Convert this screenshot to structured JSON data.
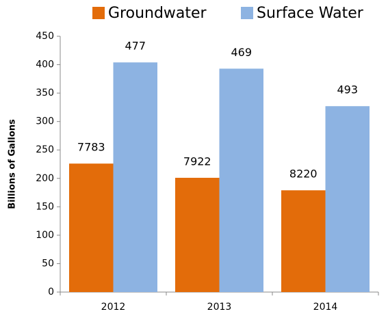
{
  "chart_data": {
    "type": "bar",
    "y_label": "Billions of Gallons",
    "categories": [
      "2012",
      "2013",
      "2014"
    ],
    "series": [
      {
        "name": "Groundwater",
        "color": "#e36c0a",
        "values": [
          226,
          201,
          179
        ],
        "annotations": [
          "7783",
          "7922",
          "8220"
        ]
      },
      {
        "name": "Surface Water",
        "color": "#8db3e2",
        "values": [
          404,
          393,
          327
        ],
        "annotations": [
          "477",
          "469",
          "493"
        ]
      }
    ],
    "ylim": [
      0,
      450
    ],
    "yticks": [
      0,
      50,
      100,
      150,
      200,
      250,
      300,
      350,
      400,
      450
    ],
    "grid": false,
    "legend": "top"
  }
}
